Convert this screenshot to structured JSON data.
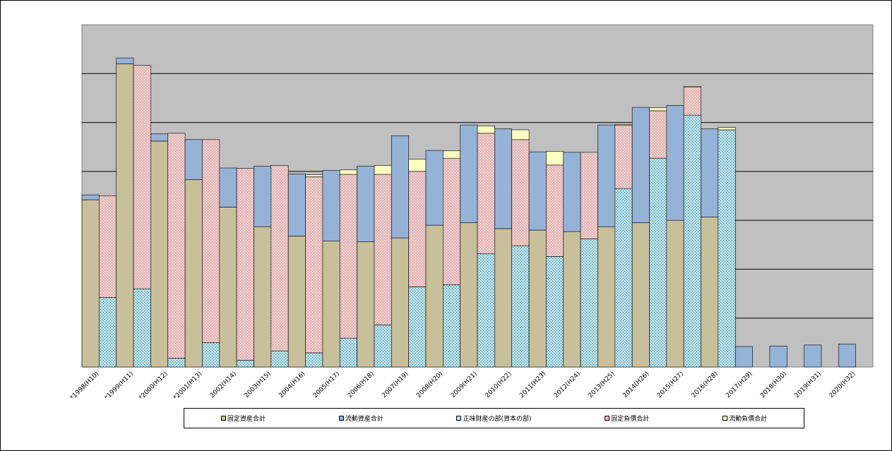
{
  "chart_data": {
    "type": "bar",
    "stacked": true,
    "paired_bars_per_category": true,
    "categories": [
      "*1998(H10)",
      "*1999(H11)",
      "*2000(H12)",
      "*2001(H13)",
      "2002(H14)",
      "2003(H15)",
      "2004(H16)",
      "2005(H17)",
      "2006(H18)",
      "2007(H19)",
      "2008(H20)",
      "2009(H21)",
      "2010(H22)",
      "2011(H23)",
      "2012(H24)",
      "2013(H25)",
      "2014(H26)",
      "2015(H27)",
      "2016(H28)",
      "2017(H29)",
      "2018(H30)",
      "2019(H31)",
      "2020(H32)"
    ],
    "grid": true,
    "ylim": [
      0,
      7
    ],
    "y_tick_labels_shown": false,
    "plot_background": "#c0c0c0",
    "asset_bar": {
      "series": [
        {
          "name": "固定資産合計",
          "color": "#c8bf9b",
          "values": [
            3.42,
            6.2,
            4.62,
            3.83,
            3.27,
            2.87,
            2.68,
            2.58,
            2.56,
            2.64,
            2.9,
            2.95,
            2.83,
            2.8,
            2.77,
            2.87,
            2.95,
            3.0,
            3.07,
            0,
            0,
            0,
            0
          ]
        },
        {
          "name": "流動資産合計",
          "color": "#95b3d7",
          "values": [
            0.1,
            0.12,
            0.15,
            0.82,
            0.8,
            1.24,
            1.27,
            1.44,
            1.55,
            2.09,
            1.53,
            2.0,
            2.04,
            1.6,
            1.62,
            2.08,
            2.36,
            2.35,
            1.8,
            0.42,
            0.43,
            0.45,
            0.47
          ]
        }
      ]
    },
    "liability_bar": {
      "series": [
        {
          "name": "正味財産の部(資本の部)",
          "color": "#b7dee8",
          "values": [
            1.42,
            1.6,
            0.18,
            0.5,
            0.14,
            0.33,
            0.29,
            0.59,
            0.86,
            1.64,
            1.68,
            2.32,
            2.48,
            2.26,
            2.62,
            3.65,
            4.27,
            5.15,
            4.85,
            0,
            0,
            0,
            0
          ]
        },
        {
          "name": "固定負債合計",
          "color": "#e6b9b8",
          "values": [
            2.08,
            4.57,
            4.6,
            4.15,
            3.92,
            3.79,
            3.6,
            3.35,
            3.08,
            2.36,
            2.59,
            2.46,
            2.17,
            1.87,
            1.77,
            1.29,
            0.97,
            0.57,
            0,
            0,
            0,
            0,
            0
          ]
        },
        {
          "name": "流動負債合計",
          "color": "#ffffc0",
          "values": [
            0,
            0,
            0,
            0,
            0,
            0,
            0.04,
            0.09,
            0.18,
            0.25,
            0.15,
            0.15,
            0.2,
            0.28,
            0,
            0.02,
            0.06,
            0.02,
            0.05,
            0,
            0,
            0,
            0
          ]
        }
      ]
    },
    "legend": [
      "固定資産合計",
      "流動資産合計",
      "正味財産の部(資本の部)",
      "固定負債合計",
      "流動負債合計"
    ],
    "legend_position": "bottom"
  }
}
